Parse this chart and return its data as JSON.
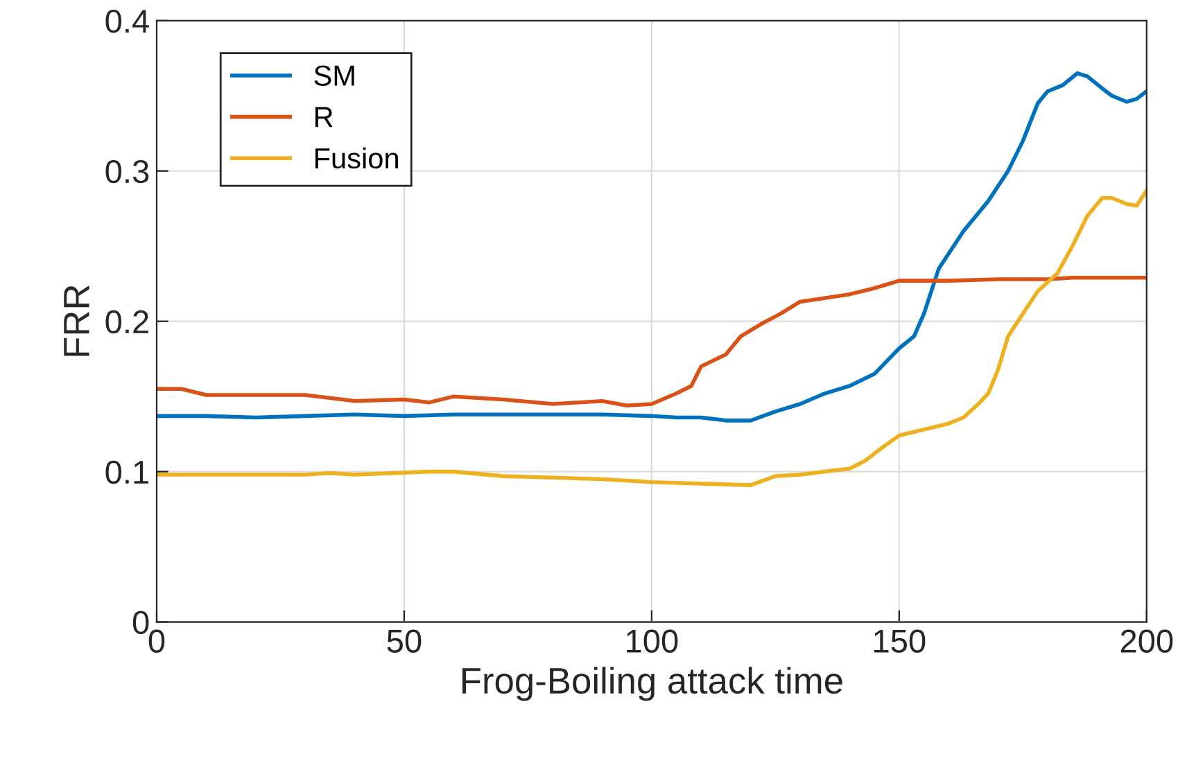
{
  "chart_data": {
    "type": "line",
    "xlabel": "Frog-Boiling attack time",
    "ylabel": "FRR",
    "xlim": [
      0,
      200
    ],
    "ylim": [
      0,
      0.4
    ],
    "xticks": [
      0,
      50,
      100,
      150,
      200
    ],
    "yticks": [
      0,
      0.1,
      0.2,
      0.3,
      0.4
    ],
    "grid": true,
    "legend": "top left",
    "marker": "none",
    "line_style": "solid",
    "series": [
      {
        "name": "SM",
        "color": "#0072bd",
        "x": [
          0,
          10,
          20,
          30,
          40,
          50,
          60,
          70,
          80,
          90,
          100,
          105,
          110,
          115,
          120,
          125,
          130,
          135,
          140,
          145,
          150,
          153,
          155,
          158,
          163,
          168,
          172,
          175,
          178,
          180,
          183,
          186,
          188,
          191,
          193,
          196,
          198,
          200
        ],
        "values": [
          0.137,
          0.137,
          0.136,
          0.137,
          0.138,
          0.137,
          0.138,
          0.138,
          0.138,
          0.138,
          0.137,
          0.136,
          0.136,
          0.134,
          0.134,
          0.14,
          0.145,
          0.152,
          0.157,
          0.165,
          0.182,
          0.19,
          0.205,
          0.235,
          0.26,
          0.28,
          0.3,
          0.32,
          0.345,
          0.353,
          0.357,
          0.365,
          0.363,
          0.355,
          0.35,
          0.346,
          0.348,
          0.353
        ]
      },
      {
        "name": "R",
        "color": "#d95319",
        "x": [
          0,
          5,
          10,
          30,
          40,
          50,
          55,
          60,
          70,
          80,
          90,
          95,
          100,
          105,
          108,
          110,
          115,
          118,
          122,
          126,
          130,
          140,
          145,
          150,
          160,
          170,
          180,
          185,
          200
        ],
        "values": [
          0.155,
          0.155,
          0.151,
          0.151,
          0.147,
          0.148,
          0.146,
          0.15,
          0.148,
          0.145,
          0.147,
          0.144,
          0.145,
          0.152,
          0.157,
          0.17,
          0.178,
          0.19,
          0.198,
          0.205,
          0.213,
          0.218,
          0.222,
          0.227,
          0.227,
          0.228,
          0.228,
          0.229,
          0.229
        ]
      },
      {
        "name": "Fusion",
        "color": "#edb120",
        "x": [
          0,
          30,
          35,
          40,
          55,
          60,
          70,
          80,
          90,
          100,
          110,
          120,
          125,
          130,
          135,
          140,
          143,
          147,
          150,
          155,
          160,
          163,
          166,
          168,
          170,
          172,
          175,
          178,
          182,
          185,
          188,
          191,
          193,
          196,
          198,
          200
        ],
        "values": [
          0.098,
          0.098,
          0.099,
          0.098,
          0.1,
          0.1,
          0.097,
          0.096,
          0.095,
          0.093,
          0.092,
          0.091,
          0.097,
          0.098,
          0.1,
          0.102,
          0.107,
          0.117,
          0.124,
          0.128,
          0.132,
          0.136,
          0.145,
          0.152,
          0.168,
          0.19,
          0.205,
          0.22,
          0.232,
          0.25,
          0.27,
          0.282,
          0.282,
          0.278,
          0.277,
          0.287
        ]
      }
    ]
  }
}
